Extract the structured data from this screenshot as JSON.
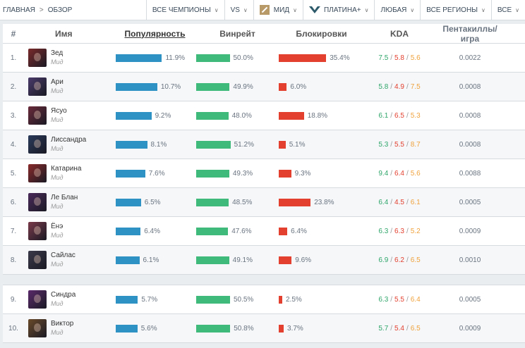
{
  "topbar": {
    "breadcrumb": {
      "home": "ГЛАВНАЯ",
      "separator": ">",
      "current": "ОБЗОР"
    },
    "filters": {
      "champions": "ВСЕ ЧЕМПИОНЫ",
      "vs": "VS",
      "role": "МИД",
      "tier": "ПЛАТИНА+",
      "queue": "ЛЮБАЯ",
      "regions": "ВСЕ РЕГИОНЫ",
      "extra": "ВСЕ"
    }
  },
  "table": {
    "headers": {
      "num": "#",
      "name": "Имя",
      "popularity": "Популярность",
      "winrate": "Винрейт",
      "banrate": "Блокировки",
      "kda": "KDA",
      "pentakills": "Пентакиллы/игра"
    },
    "rows": [
      {
        "rank": "1.",
        "name": "Зед",
        "role": "Мид",
        "pop": "11.9%",
        "pop_v": 11.9,
        "win": "50.0%",
        "win_v": 50.0,
        "ban": "35.4%",
        "ban_v": 35.4,
        "k": "7.5",
        "d": "5.8",
        "a": "5.6",
        "penta": "0.0022",
        "color": "#7a2a2a"
      },
      {
        "rank": "2.",
        "name": "Ари",
        "role": "Мид",
        "pop": "10.7%",
        "pop_v": 10.7,
        "win": "49.9%",
        "win_v": 49.9,
        "ban": "6.0%",
        "ban_v": 6.0,
        "k": "5.8",
        "d": "4.9",
        "a": "7.5",
        "penta": "0.0008",
        "color": "#4a3a6a"
      },
      {
        "rank": "3.",
        "name": "Ясуо",
        "role": "Мид",
        "pop": "9.2%",
        "pop_v": 9.2,
        "win": "48.0%",
        "win_v": 48.0,
        "ban": "18.8%",
        "ban_v": 18.8,
        "k": "6.1",
        "d": "6.5",
        "a": "5.3",
        "penta": "0.0008",
        "color": "#6a2a3a"
      },
      {
        "rank": "4.",
        "name": "Лиссандра",
        "role": "Мид",
        "pop": "8.1%",
        "pop_v": 8.1,
        "win": "51.2%",
        "win_v": 51.2,
        "ban": "5.1%",
        "ban_v": 5.1,
        "k": "5.3",
        "d": "5.5",
        "a": "8.7",
        "penta": "0.0008",
        "color": "#2a3a5a"
      },
      {
        "rank": "5.",
        "name": "Катарина",
        "role": "Мид",
        "pop": "7.6%",
        "pop_v": 7.6,
        "win": "49.3%",
        "win_v": 49.3,
        "ban": "9.3%",
        "ban_v": 9.3,
        "k": "9.4",
        "d": "6.4",
        "a": "5.6",
        "penta": "0.0088",
        "color": "#8a2a2a"
      },
      {
        "rank": "6.",
        "name": "Ле Блан",
        "role": "Мид",
        "pop": "6.5%",
        "pop_v": 6.5,
        "win": "48.5%",
        "win_v": 48.5,
        "ban": "23.8%",
        "ban_v": 23.8,
        "k": "6.4",
        "d": "4.5",
        "a": "6.1",
        "penta": "0.0005",
        "color": "#4a2a5a"
      },
      {
        "rank": "7.",
        "name": "Ёнэ",
        "role": "Мид",
        "pop": "6.4%",
        "pop_v": 6.4,
        "win": "47.6%",
        "win_v": 47.6,
        "ban": "6.4%",
        "ban_v": 6.4,
        "k": "6.3",
        "d": "6.3",
        "a": "5.2",
        "penta": "0.0009",
        "color": "#7a3a4a"
      },
      {
        "rank": "8.",
        "name": "Сайлас",
        "role": "Мид",
        "pop": "6.1%",
        "pop_v": 6.1,
        "win": "49.1%",
        "win_v": 49.1,
        "ban": "9.6%",
        "ban_v": 9.6,
        "k": "6.9",
        "d": "6.2",
        "a": "6.5",
        "penta": "0.0010",
        "color": "#3a3a4a"
      },
      {
        "rank": "9.",
        "name": "Синдра",
        "role": "Мид",
        "pop": "5.7%",
        "pop_v": 5.7,
        "win": "50.5%",
        "win_v": 50.5,
        "ban": "2.5%",
        "ban_v": 2.5,
        "k": "6.3",
        "d": "5.5",
        "a": "6.4",
        "penta": "0.0005",
        "color": "#5a2a6a"
      },
      {
        "rank": "10.",
        "name": "Виктор",
        "role": "Мид",
        "pop": "5.6%",
        "pop_v": 5.6,
        "win": "50.8%",
        "win_v": 50.8,
        "ban": "3.7%",
        "ban_v": 3.7,
        "k": "5.7",
        "d": "5.4",
        "a": "6.5",
        "penta": "0.0009",
        "color": "#6a4a2a"
      }
    ]
  },
  "colors": {
    "popularity": "#2e92c4",
    "winrate": "#3fba7a",
    "banrate": "#e3402f",
    "kills": "#2fa66a",
    "deaths": "#e3402f",
    "assists": "#f0a23c"
  },
  "icons": {
    "role": "mid-role-icon",
    "tier": "platinum-tier-icon",
    "chevron": "chevron-down-icon"
  }
}
